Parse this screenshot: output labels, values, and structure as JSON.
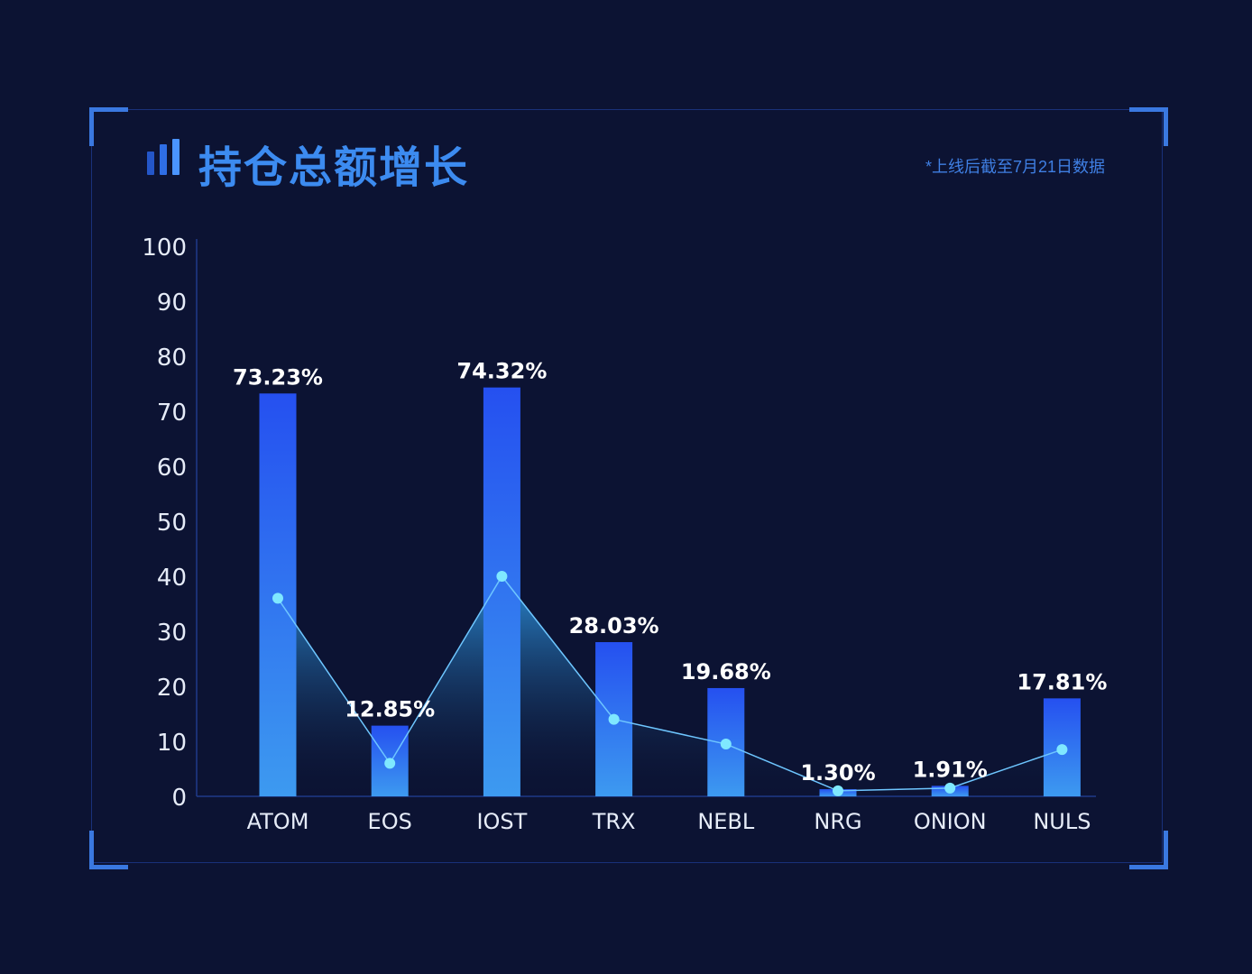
{
  "header": {
    "title": "持仓总额增长",
    "note": "*上线后截至7月21日数据",
    "title_icon": "bar-chart-icon"
  },
  "colors": {
    "background": "#0c1333",
    "frame": "#19317a",
    "corner": "#3a78e0",
    "title": "#3c8bf0",
    "bar_top": "#2550f0",
    "bar_bottom": "#3d9af0",
    "line": "#6ec6ff",
    "point": "#7fe8ff"
  },
  "chart_data": {
    "type": "bar",
    "title": "持仓总额增长",
    "xlabel": "",
    "ylabel": "",
    "ylim": [
      0,
      100
    ],
    "yticks": [
      0,
      10,
      20,
      30,
      40,
      50,
      60,
      70,
      80,
      90,
      100
    ],
    "categories": [
      "ATOM",
      "EOS",
      "IOST",
      "TRX",
      "NEBL",
      "NRG",
      "ONION",
      "NULS"
    ],
    "series": [
      {
        "type": "bar",
        "values": [
          73.23,
          12.85,
          74.32,
          28.03,
          19.68,
          1.3,
          1.91,
          17.81
        ],
        "labels": [
          "73.23%",
          "12.85%",
          "74.32%",
          "28.03%",
          "19.68%",
          "1.30%",
          "1.91%",
          "17.81%"
        ]
      },
      {
        "type": "area-line",
        "values": [
          36,
          6,
          40,
          14,
          9.5,
          1,
          1.5,
          8.5
        ]
      }
    ],
    "grid": false,
    "legend": "none"
  }
}
